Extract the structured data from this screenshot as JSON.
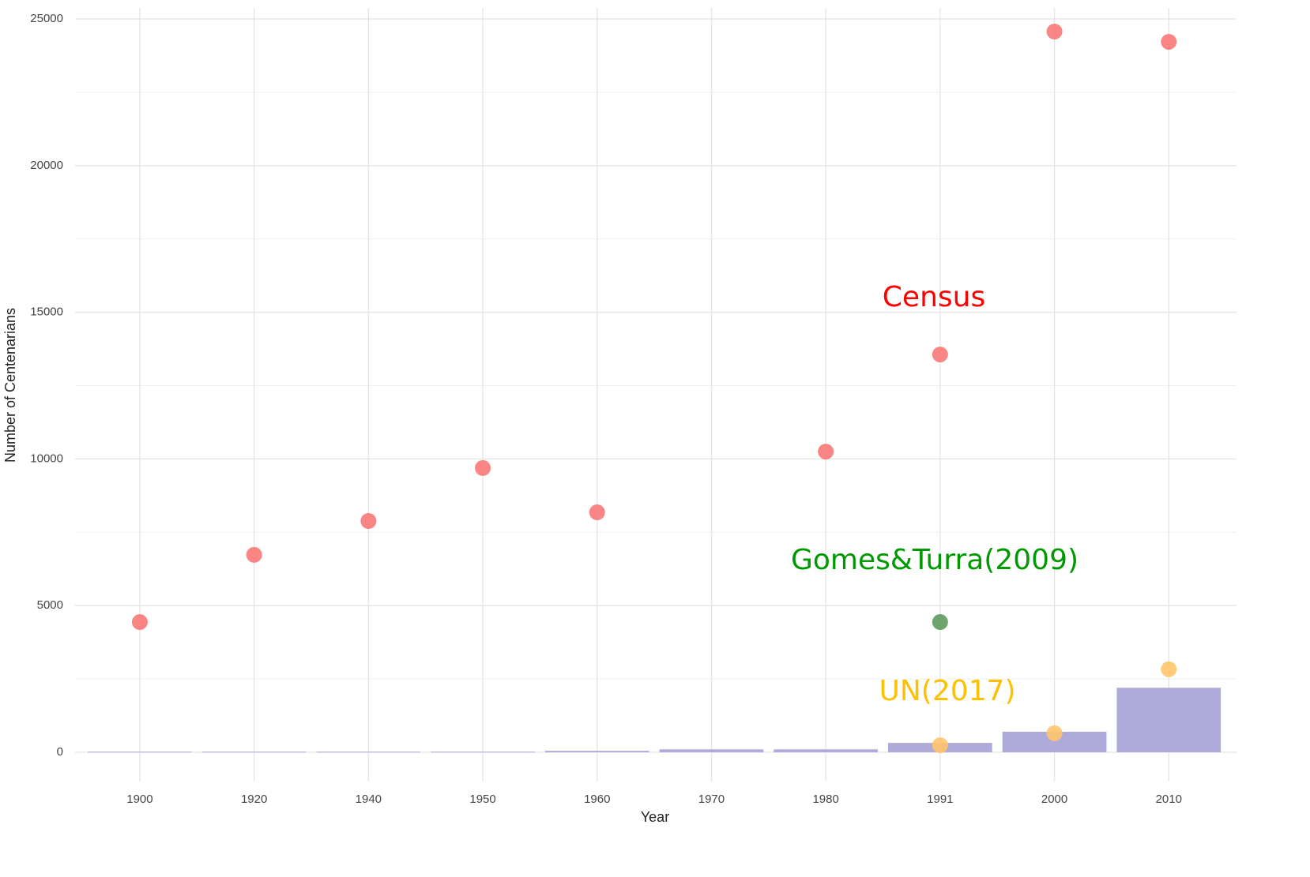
{
  "chart_data": {
    "type": "bar-scatter",
    "x_label": "Year",
    "y_label": "Number of Centenarians",
    "categories": [
      "1900",
      "1920",
      "1940",
      "1950",
      "1960",
      "1970",
      "1980",
      "1991",
      "2000",
      "2010"
    ],
    "bars": {
      "color": "#aeabda",
      "values": [
        20,
        20,
        20,
        20,
        50,
        100,
        100,
        320,
        700,
        2200
      ]
    },
    "series": [
      {
        "name": "Census",
        "color": "#f87878",
        "label_color": "#ff0000",
        "values": [
          4440,
          6730,
          7885,
          9690,
          8180,
          null,
          10250,
          13560,
          24570,
          24220
        ]
      },
      {
        "name": "Gomes&Turra(2009)",
        "color": "#5e9a5e",
        "label_color": "#009900",
        "values": [
          null,
          null,
          null,
          null,
          null,
          null,
          null,
          4440,
          null,
          null
        ]
      },
      {
        "name": "UN(2017)",
        "color": "#ffc46a",
        "label_color": "#ffc000",
        "values": [
          null,
          null,
          null,
          null,
          null,
          null,
          null,
          240,
          650,
          2830
        ]
      }
    ],
    "ylim": [
      0,
      25000
    ],
    "yticks": [
      0,
      5000,
      10000,
      15000,
      20000,
      25000
    ],
    "grid": true
  }
}
